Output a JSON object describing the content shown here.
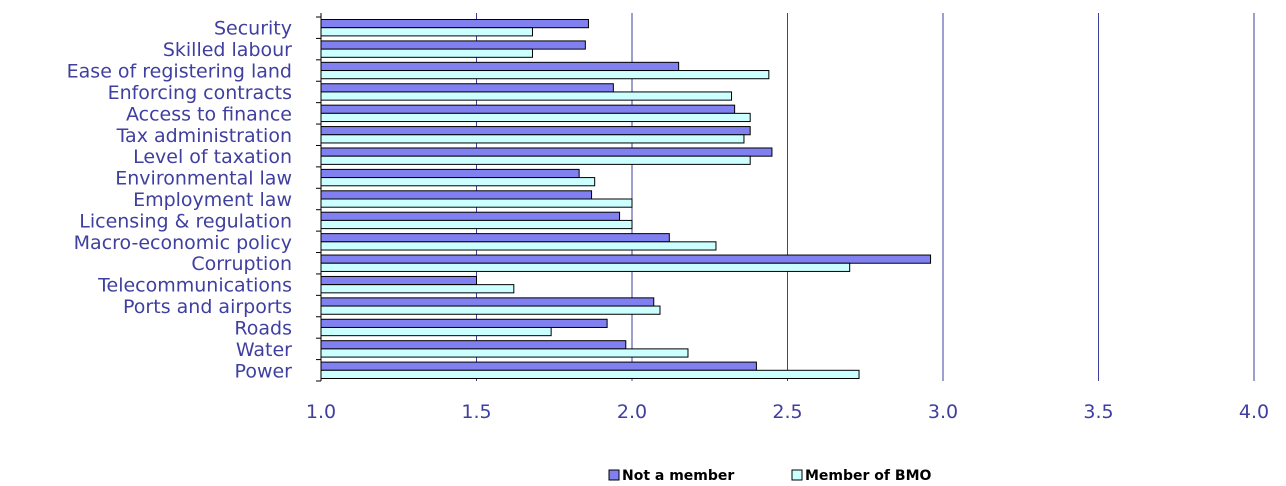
{
  "chart_data": {
    "type": "bar",
    "orientation": "horizontal",
    "title": "",
    "xlabel": "",
    "ylabel": "",
    "categories": [
      "Security",
      "Skilled labour",
      "Ease of registering land",
      "Enforcing contracts",
      "Access to finance",
      "Tax administration",
      "Level of taxation",
      "Environmental law",
      "Employment law",
      "Licensing & regulation",
      "Macro-economic policy",
      "Corruption",
      "Telecommunications",
      "Ports and airports",
      "Roads",
      "Water",
      "Power"
    ],
    "series": [
      {
        "name": "Not a member",
        "color": "#8080f0",
        "values": [
          1.86,
          1.85,
          2.15,
          1.94,
          2.33,
          2.38,
          2.45,
          1.83,
          1.87,
          1.96,
          2.12,
          2.96,
          1.5,
          2.07,
          1.92,
          1.98,
          2.4
        ]
      },
      {
        "name": "Member of BMO",
        "color": "#ccffff",
        "values": [
          1.68,
          1.68,
          2.44,
          2.32,
          2.38,
          2.36,
          2.38,
          1.88,
          2.0,
          2.0,
          2.27,
          2.7,
          1.62,
          2.09,
          1.74,
          2.18,
          2.73
        ]
      }
    ],
    "xlim": [
      1.0,
      4.0
    ],
    "xticks": [
      "1.0",
      "1.5",
      "2.0",
      "2.5",
      "3.0",
      "3.5",
      "4.0"
    ],
    "grid": "vertical",
    "gridline_color": "#3f3f9f",
    "legend_position": "bottom"
  }
}
